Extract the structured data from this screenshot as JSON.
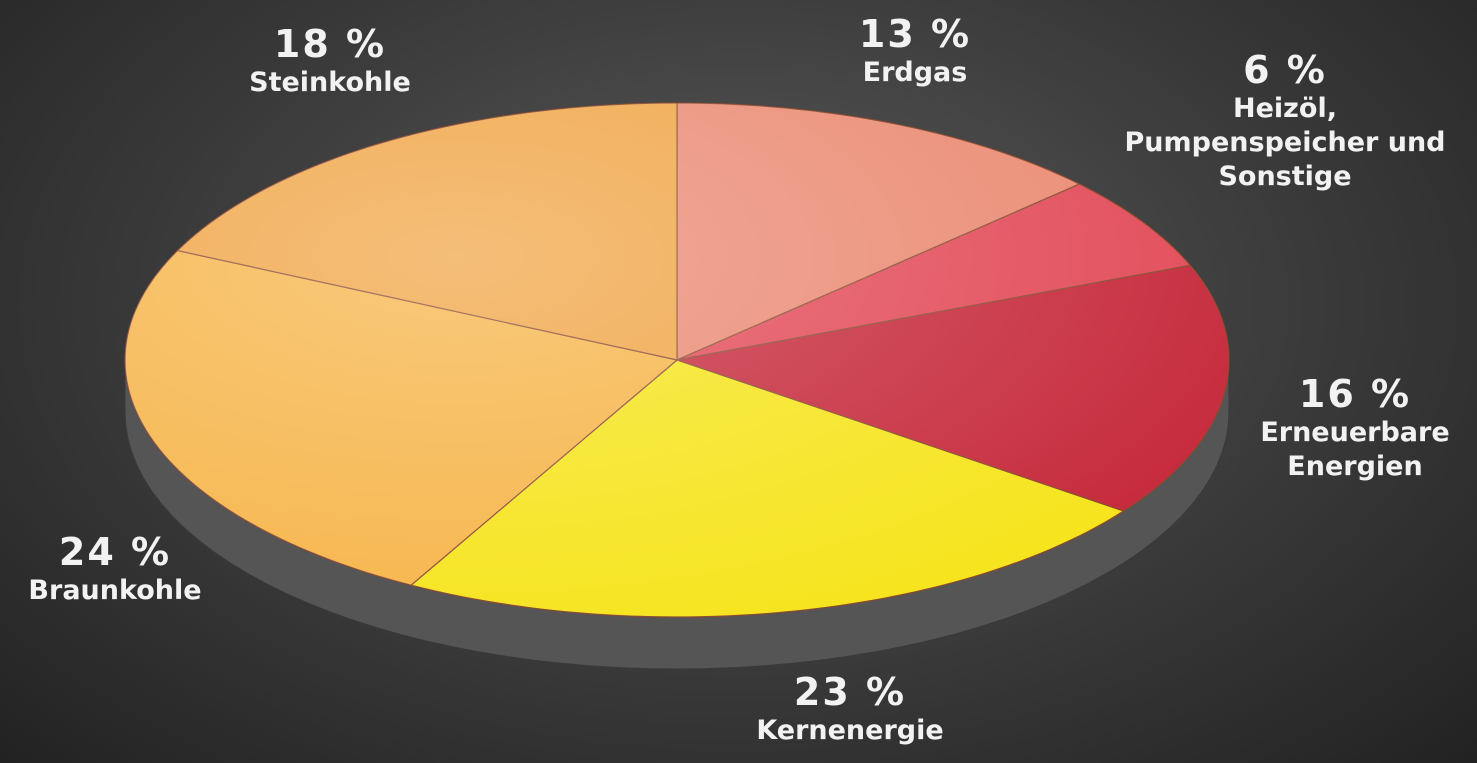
{
  "chart_data": {
    "type": "pie",
    "categories": [
      "Erdgas",
      "Heizöl, Pumpenspeicher und Sonstige",
      "Erneuerbare Energien",
      "Kernenergie",
      "Braunkohle",
      "Steinkohle"
    ],
    "values": [
      13,
      6,
      16,
      23,
      24,
      18
    ],
    "value_labels": [
      "13 %",
      "6 %",
      "16 %",
      "23 %",
      "24 %",
      "18 %"
    ],
    "colors": [
      "#ea8a72",
      "#e24a58",
      "#c62a3c",
      "#f6e41c",
      "#f6b448",
      "#f0a444"
    ]
  }
}
